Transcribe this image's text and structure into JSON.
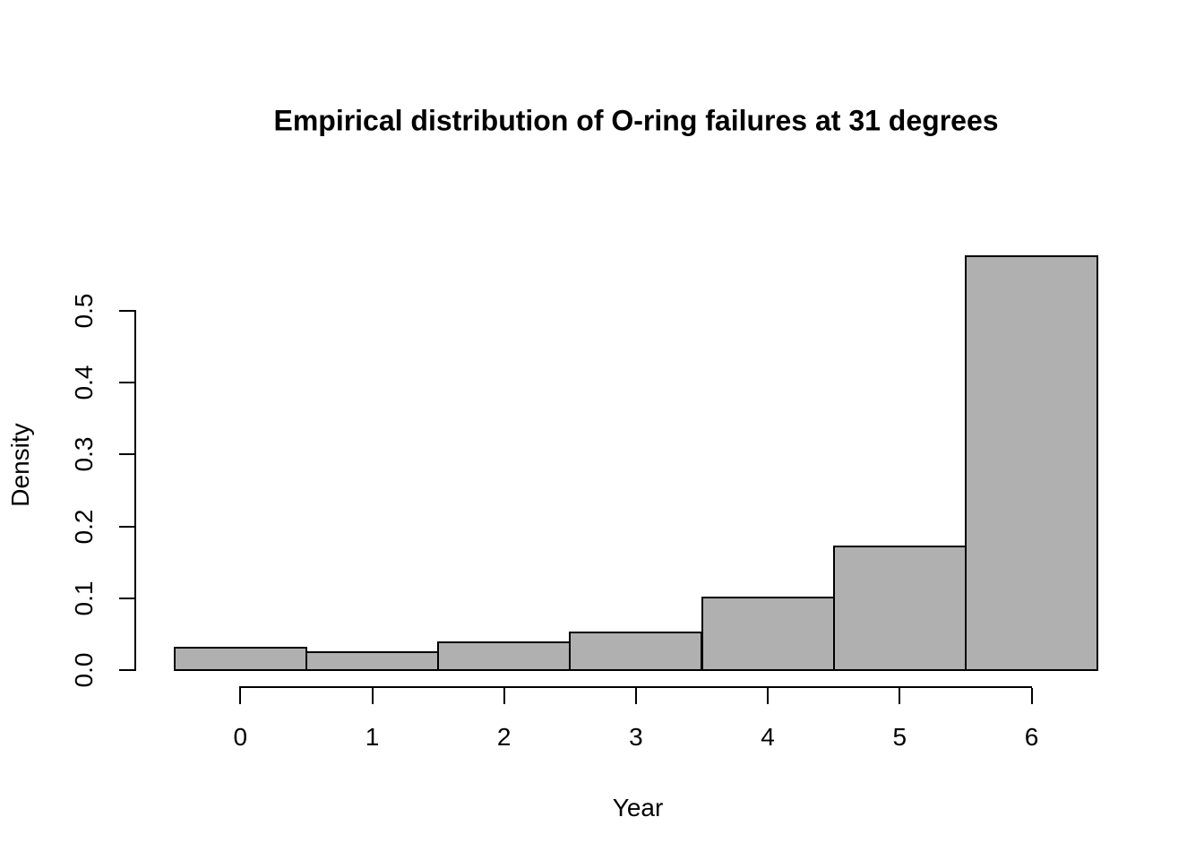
{
  "chart_data": {
    "type": "bar",
    "subtype": "histogram",
    "title": "Empirical distribution of O-ring failures at 31 degrees",
    "xlabel": "Year",
    "ylabel": "Density",
    "categories": [
      0,
      1,
      2,
      3,
      4,
      5,
      6
    ],
    "values": [
      0.032,
      0.025,
      0.039,
      0.053,
      0.101,
      0.172,
      0.576
    ],
    "bin_breaks": [
      -0.5,
      0.5,
      1.5,
      2.5,
      3.5,
      4.5,
      5.5,
      6.5
    ],
    "x_ticks": [
      0,
      1,
      2,
      3,
      4,
      5,
      6
    ],
    "x_tick_labels": [
      "0",
      "1",
      "2",
      "3",
      "4",
      "5",
      "6"
    ],
    "y_ticks": [
      0.0,
      0.1,
      0.2,
      0.3,
      0.4,
      0.5
    ],
    "y_tick_labels": [
      "0.0",
      "0.1",
      "0.2",
      "0.3",
      "0.4",
      "0.5"
    ],
    "xlim": [
      -0.5,
      6.5
    ],
    "ylim": [
      0,
      0.58
    ],
    "grid": false,
    "legend": false,
    "bar_fill": "#B0B0B0",
    "bar_stroke": "#000000",
    "axis_color": "#000000",
    "background": "#FFFFFF"
  }
}
